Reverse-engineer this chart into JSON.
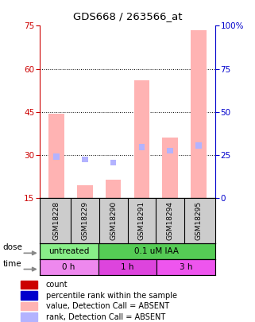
{
  "title": "GDS668 / 263566_at",
  "samples": [
    "GSM18228",
    "GSM18229",
    "GSM18290",
    "GSM18291",
    "GSM18294",
    "GSM18295"
  ],
  "bar_values_absent": [
    44.5,
    19.5,
    21.5,
    56.0,
    36.0,
    73.5
  ],
  "rank_values_absent": [
    24.0,
    22.5,
    20.5,
    29.5,
    27.5,
    30.5
  ],
  "bar_color_absent": "#ffb3b3",
  "rank_color_absent": "#b3b3ff",
  "bar_color_present": "#cc0000",
  "rank_color_present": "#0000cc",
  "ylim_left": [
    15,
    75
  ],
  "ylim_right": [
    0,
    100
  ],
  "yticks_left": [
    15,
    30,
    45,
    60,
    75
  ],
  "yticks_right": [
    0,
    25,
    50,
    75,
    100
  ],
  "ytick_labels_right": [
    "0",
    "25",
    "50",
    "75",
    "100%"
  ],
  "left_axis_color": "#cc0000",
  "right_axis_color": "#0000cc",
  "dose_groups": [
    {
      "label": "untreated",
      "start": 0,
      "end": 2,
      "color": "#88ee88"
    },
    {
      "label": "0.1 uM IAA",
      "start": 2,
      "end": 6,
      "color": "#55cc55"
    }
  ],
  "time_groups": [
    {
      "label": "0 h",
      "start": 0,
      "end": 2,
      "color": "#ee88ee"
    },
    {
      "label": "1 h",
      "start": 2,
      "end": 4,
      "color": "#dd44dd"
    },
    {
      "label": "3 h",
      "start": 4,
      "end": 6,
      "color": "#ee55ee"
    }
  ],
  "legend_items": [
    {
      "color": "#cc0000",
      "label": "count"
    },
    {
      "color": "#0000cc",
      "label": "percentile rank within the sample"
    },
    {
      "color": "#ffb3b3",
      "label": "value, Detection Call = ABSENT"
    },
    {
      "color": "#b3b3ff",
      "label": "rank, Detection Call = ABSENT"
    }
  ],
  "bar_width": 0.55,
  "bg_color": "#ffffff",
  "plot_bg": "#ffffff",
  "sample_label_row_color": "#cccccc"
}
